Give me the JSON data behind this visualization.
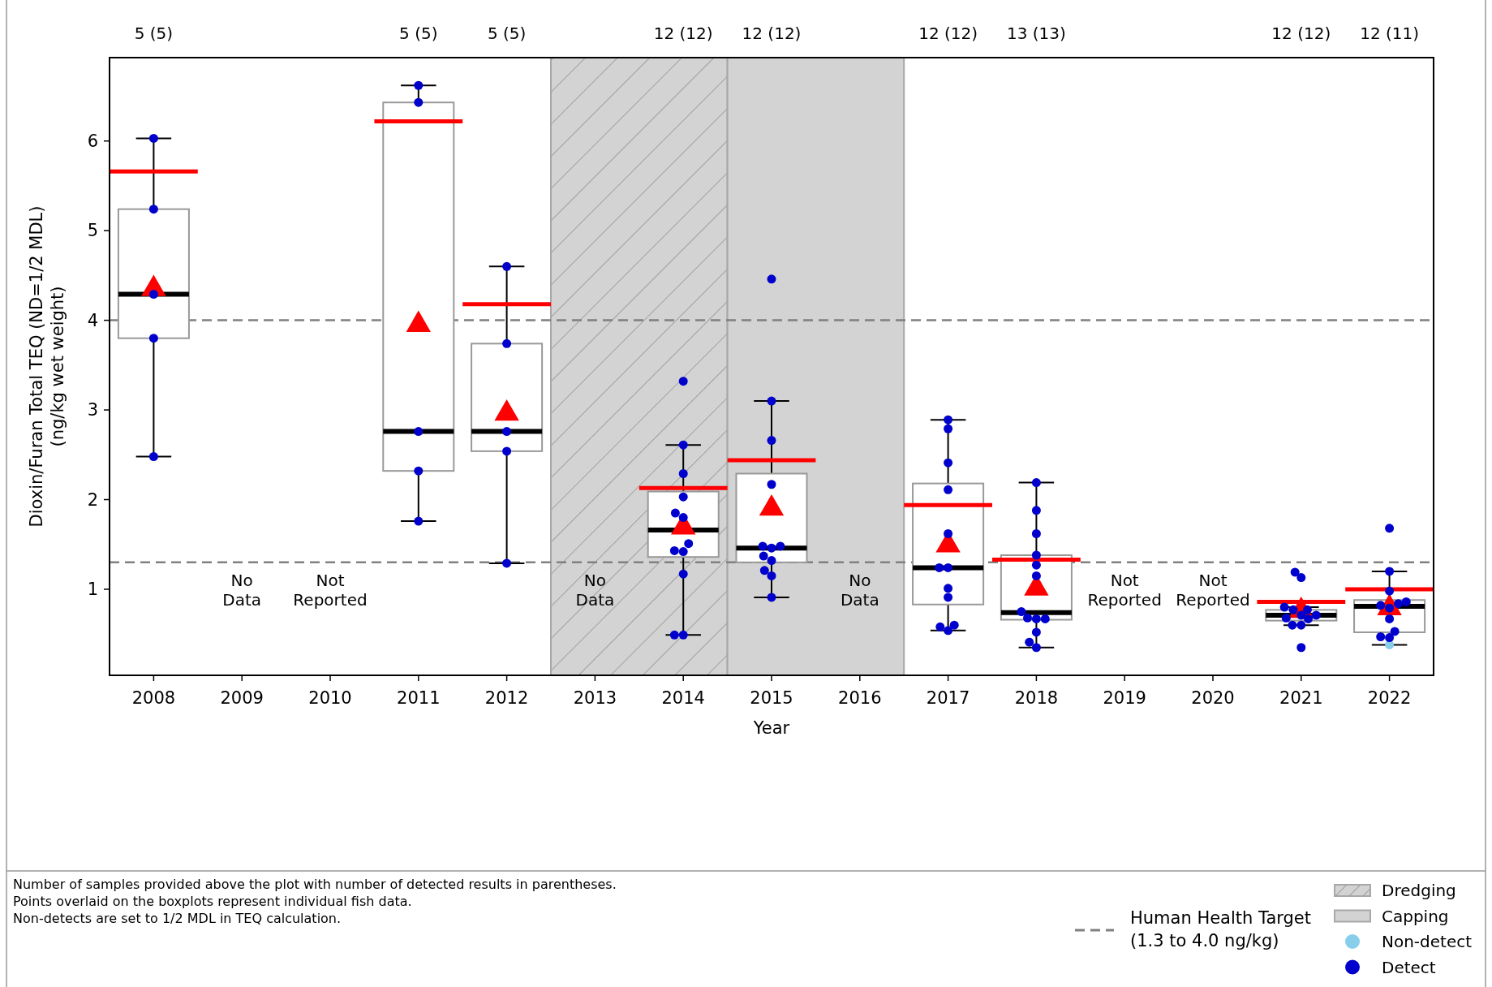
{
  "chart_data": {
    "type": "box",
    "xlabel": "Year",
    "ylabel": "Dioxin/Furan Total TEQ (ND=1/2 MDL) (ng/kg wet weight)",
    "x": [
      2008,
      2011,
      2012,
      2014,
      2015,
      2017,
      2018,
      2021,
      2022
    ],
    "boxes": [
      {
        "low": 2.48,
        "q1": 3.8,
        "median": 4.29,
        "q3": 5.24,
        "high": 6.03,
        "mean": 4.35
      },
      {
        "low": 1.76,
        "q1": 2.32,
        "median": 2.76,
        "q3": 6.43,
        "high": 6.62,
        "mean": 3.95
      },
      {
        "low": 1.29,
        "q1": 2.54,
        "median": 2.76,
        "q3": 3.74,
        "high": 4.6,
        "mean": 2.96
      },
      {
        "low": 0.49,
        "q1": 1.36,
        "median": 1.66,
        "q3": 2.09,
        "high": 2.61,
        "mean": 1.69
      },
      {
        "low": 0.91,
        "q1": 1.3,
        "median": 1.46,
        "q3": 2.29,
        "high": 3.1,
        "mean": 1.9
      },
      {
        "low": 0.54,
        "q1": 0.83,
        "median": 1.24,
        "q3": 2.18,
        "high": 2.89,
        "mean": 1.49
      },
      {
        "low": 0.35,
        "q1": 0.66,
        "median": 0.74,
        "q3": 1.38,
        "high": 2.19,
        "mean": 1.01
      },
      {
        "low": 0.6,
        "q1": 0.65,
        "median": 0.71,
        "q3": 0.77,
        "high": 0.8,
        "mean": 0.76
      },
      {
        "low": 0.38,
        "q1": 0.52,
        "median": 0.81,
        "q3": 0.88,
        "high": 1.2,
        "mean": 0.79
      }
    ],
    "series": [
      {
        "type": "line",
        "color": "#ff0000",
        "x": [
          2007.5,
          2008.5
        ],
        "values": [
          5.66,
          5.66
        ]
      },
      {
        "type": "line",
        "color": "#ff0000",
        "x": [
          2010.5,
          2011.5
        ],
        "values": [
          6.22,
          6.22
        ]
      },
      {
        "type": "line",
        "color": "#ff0000",
        "x": [
          2011.5,
          2012.5
        ],
        "values": [
          4.18,
          4.18
        ]
      },
      {
        "type": "line",
        "color": "#ff0000",
        "x": [
          2013.5,
          2014.5
        ],
        "values": [
          2.13,
          2.13
        ]
      },
      {
        "type": "line",
        "color": "#ff0000",
        "x": [
          2014.5,
          2015.5
        ],
        "values": [
          2.44,
          2.44
        ]
      },
      {
        "type": "line",
        "color": "#ff0000",
        "x": [
          2016.5,
          2017.5
        ],
        "values": [
          1.94,
          1.94
        ]
      },
      {
        "type": "line",
        "color": "#ff0000",
        "x": [
          2017.5,
          2018.5
        ],
        "values": [
          1.33,
          1.33
        ]
      },
      {
        "type": "line",
        "color": "#ff0000",
        "x": [
          2020.5,
          2021.5
        ],
        "values": [
          0.86,
          0.86
        ]
      },
      {
        "type": "line",
        "color": "#ff0000",
        "x": [
          2021.5,
          2022.5
        ],
        "values": [
          1.0,
          1.0
        ]
      },
      {
        "type": "scatter",
        "name": "Non-detect",
        "marker": "circle",
        "color": "#87ceeb",
        "x": [
          2022
        ],
        "values": [
          0.38
        ]
      },
      {
        "type": "scatter",
        "name": "Detect",
        "marker": "circle",
        "color": "#0000cd",
        "x": [
          2008,
          2008,
          2008,
          2008,
          2008,
          2011,
          2011,
          2011,
          2011,
          2011,
          2012,
          2012,
          2012,
          2012,
          2012,
          2014,
          2014,
          2014,
          2014,
          2013.91,
          2014,
          2014.06,
          2013.9,
          2014,
          2014,
          2013.9,
          2014,
          2015,
          2015,
          2015,
          2015,
          2014.9,
          2015,
          2015.1,
          2014.91,
          2015,
          2014.92,
          2015,
          2015,
          2017,
          2017,
          2017,
          2017,
          2017,
          2016.9,
          2017,
          2017,
          2017,
          2017.07,
          2016.91,
          2017,
          2018,
          2018,
          2018,
          2018,
          2018,
          2018,
          2017.83,
          2017.9,
          2018,
          2018.1,
          2018,
          2017.92,
          2018,
          2020.93,
          2021,
          2020.81,
          2020.91,
          2021.07,
          2021,
          2021.17,
          2020.83,
          2021.08,
          2020.9,
          2021,
          2021,
          2022,
          2022,
          2022,
          2022.19,
          2022.1,
          2021.9,
          2022,
          2022,
          2022.06,
          2021.9,
          2022
        ],
        "values": [
          6.03,
          5.24,
          4.29,
          3.8,
          2.48,
          6.62,
          6.43,
          2.76,
          2.32,
          1.76,
          4.6,
          3.74,
          2.76,
          2.54,
          1.29,
          3.32,
          2.61,
          2.29,
          2.03,
          1.85,
          1.8,
          1.51,
          1.43,
          1.42,
          1.17,
          0.49,
          0.49,
          4.46,
          3.1,
          2.66,
          2.17,
          1.48,
          1.46,
          1.48,
          1.37,
          1.32,
          1.21,
          1.15,
          0.91,
          2.89,
          2.79,
          2.41,
          2.11,
          1.62,
          1.24,
          1.24,
          1.01,
          0.91,
          0.6,
          0.58,
          0.54,
          2.19,
          1.88,
          1.62,
          1.38,
          1.27,
          1.15,
          0.75,
          0.68,
          0.67,
          0.67,
          0.52,
          0.41,
          0.35,
          1.19,
          1.13,
          0.8,
          0.77,
          0.77,
          0.71,
          0.71,
          0.68,
          0.67,
          0.6,
          0.6,
          0.35,
          1.68,
          1.2,
          0.98,
          0.86,
          0.84,
          0.82,
          0.79,
          0.67,
          0.53,
          0.47,
          0.46
        ]
      }
    ],
    "xlim": [
      2007.5,
      2022.5
    ],
    "xticks": [
      2008,
      2009,
      2010,
      2011,
      2012,
      2013,
      2014,
      2015,
      2016,
      2017,
      2018,
      2019,
      2020,
      2021,
      2022
    ],
    "ylim": [
      0.04,
      6.93
    ],
    "yticks": [
      1,
      2,
      3,
      4,
      5,
      6
    ],
    "bands": [
      {
        "axis": "x",
        "from": 2012.5,
        "to": 2014.5,
        "label": "Dredging",
        "color": "#d3d3d3"
      },
      {
        "axis": "x",
        "from": 2014.5,
        "to": 2016.5,
        "label": "Capping",
        "color": "#d3d3d3"
      }
    ],
    "ref_lines": [
      {
        "axis": "y",
        "value": 1.3,
        "label": "Human Health Target (1.3 to 4.0 ng/kg)",
        "color": "#808080",
        "line_style": "dashed"
      },
      {
        "axis": "y",
        "value": 4.0,
        "color": "#808080",
        "line_style": "dashed"
      }
    ],
    "annotations": [
      "5 (5)",
      "5 (5)",
      "5 (5)",
      "12 (12)",
      "12 (12)",
      "12 (12)",
      "13 (13)",
      "12 (12)",
      "12 (11)",
      "No Data",
      "Not Reported",
      "No Data",
      "No Data",
      "Not Reported",
      "Not Reported",
      "Number of samples provided above the plot with number of detected results in parentheses.",
      "Points overlaid on the boxplots represent individual fish data.",
      "Non-detects are set to 1/2 MDL in TEQ calculation."
    ],
    "legend": "bottom right"
  }
}
